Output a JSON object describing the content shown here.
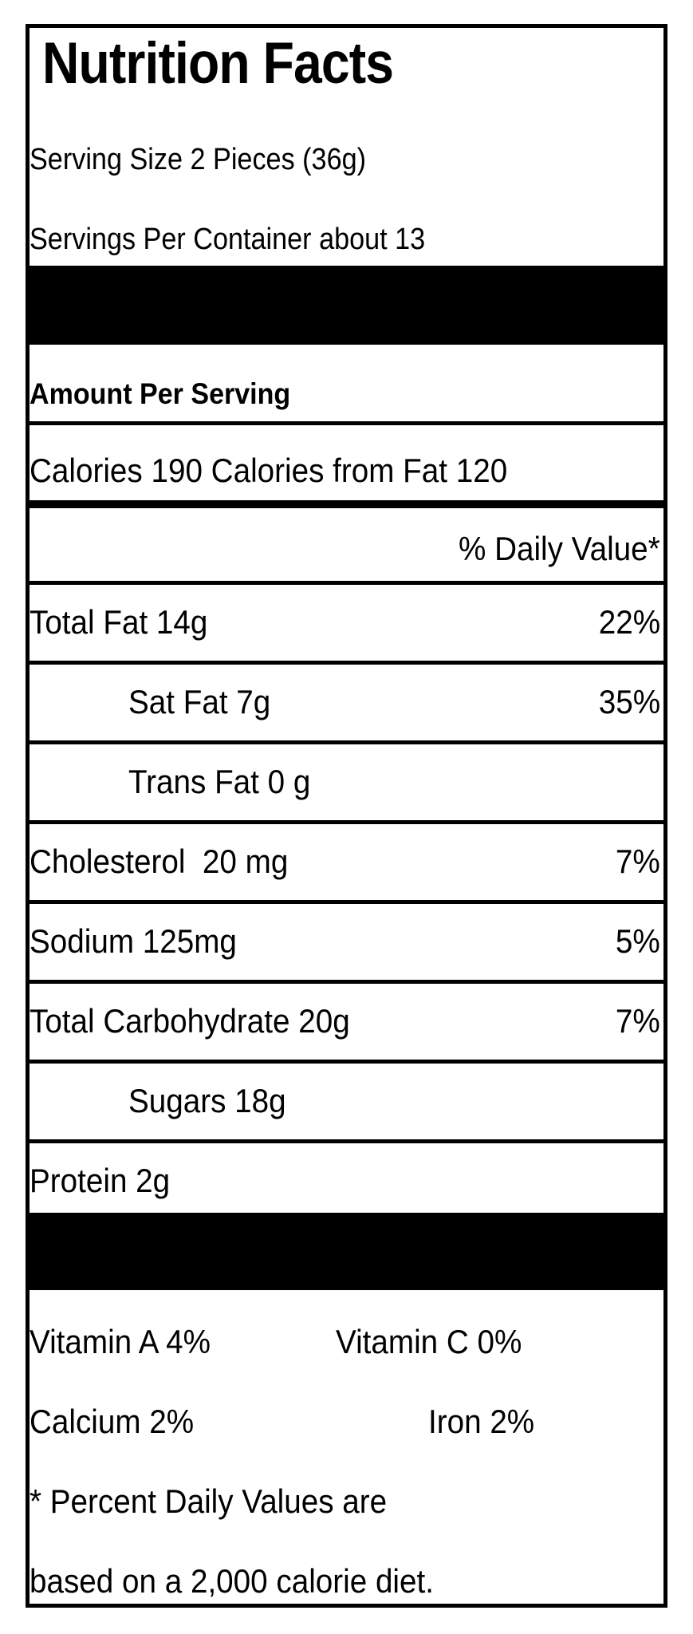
{
  "title": "Nutrition Facts",
  "serving_size": "Serving Size 2 Pieces (36g)",
  "servings_per_container": "Servings Per Container about 13",
  "amount_per_serving": "Amount Per Serving",
  "calories_line": "Calories 190 Calories from Fat 120",
  "daily_value_header": "% Daily Value*",
  "nutrients": [
    {
      "name": "Total Fat 14g",
      "dv": "22%"
    },
    {
      "name": "Sat Fat 7g",
      "dv": "35%"
    },
    {
      "name": "Trans Fat 0 g",
      "dv": ""
    },
    {
      "name": "Cholesterol  20 mg",
      "dv": "7%"
    },
    {
      "name": "Sodium 125mg",
      "dv": "5%"
    },
    {
      "name": "Total Carbohydrate 20g",
      "dv": "7%"
    },
    {
      "name": "Sugars 18g",
      "dv": ""
    },
    {
      "name": "Protein 2g",
      "dv": ""
    }
  ],
  "vitamins": {
    "vitamin_a": "Vitamin A 4%",
    "vitamin_c": "Vitamin C 0%",
    "calcium": "Calcium 2%",
    "iron": "Iron 2%"
  },
  "footnote_line1": "* Percent Daily Values are",
  "footnote_line2": "based on a 2,000 calorie diet."
}
